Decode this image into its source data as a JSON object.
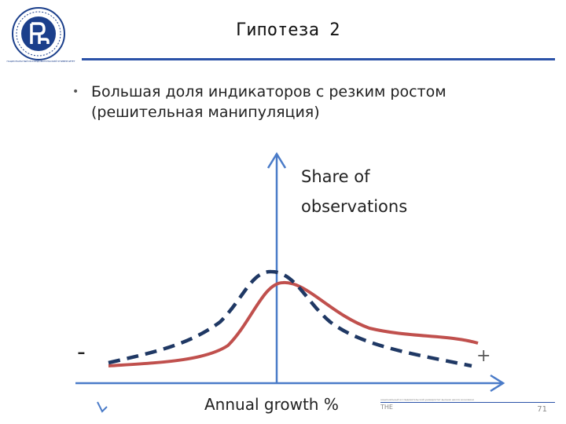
{
  "header": {
    "title": "Гипотеза 2",
    "logo_caption": "НАЦИОНАЛЬНЫЙ ИССЛЕДОВАТЕЛЬСКИЙ УНИВЕРСИТЕТ"
  },
  "bullet": {
    "text": "Большая доля индикаторов с резким ростом (решительная манипуляция)"
  },
  "diagram": {
    "y_label_line1": "Share of",
    "y_label_line2": "observations",
    "x_label": "Annual growth %",
    "minus_sign": "-",
    "plus_sign": "+",
    "colors": {
      "solid_curve": "#c0504d",
      "dashed_curve": "#1f3864",
      "axes": "#4a7bc8"
    }
  },
  "footer": {
    "text": "национальный исследовательский университет высшая школа экономики",
    "org": "THE",
    "page_number": "71"
  }
}
